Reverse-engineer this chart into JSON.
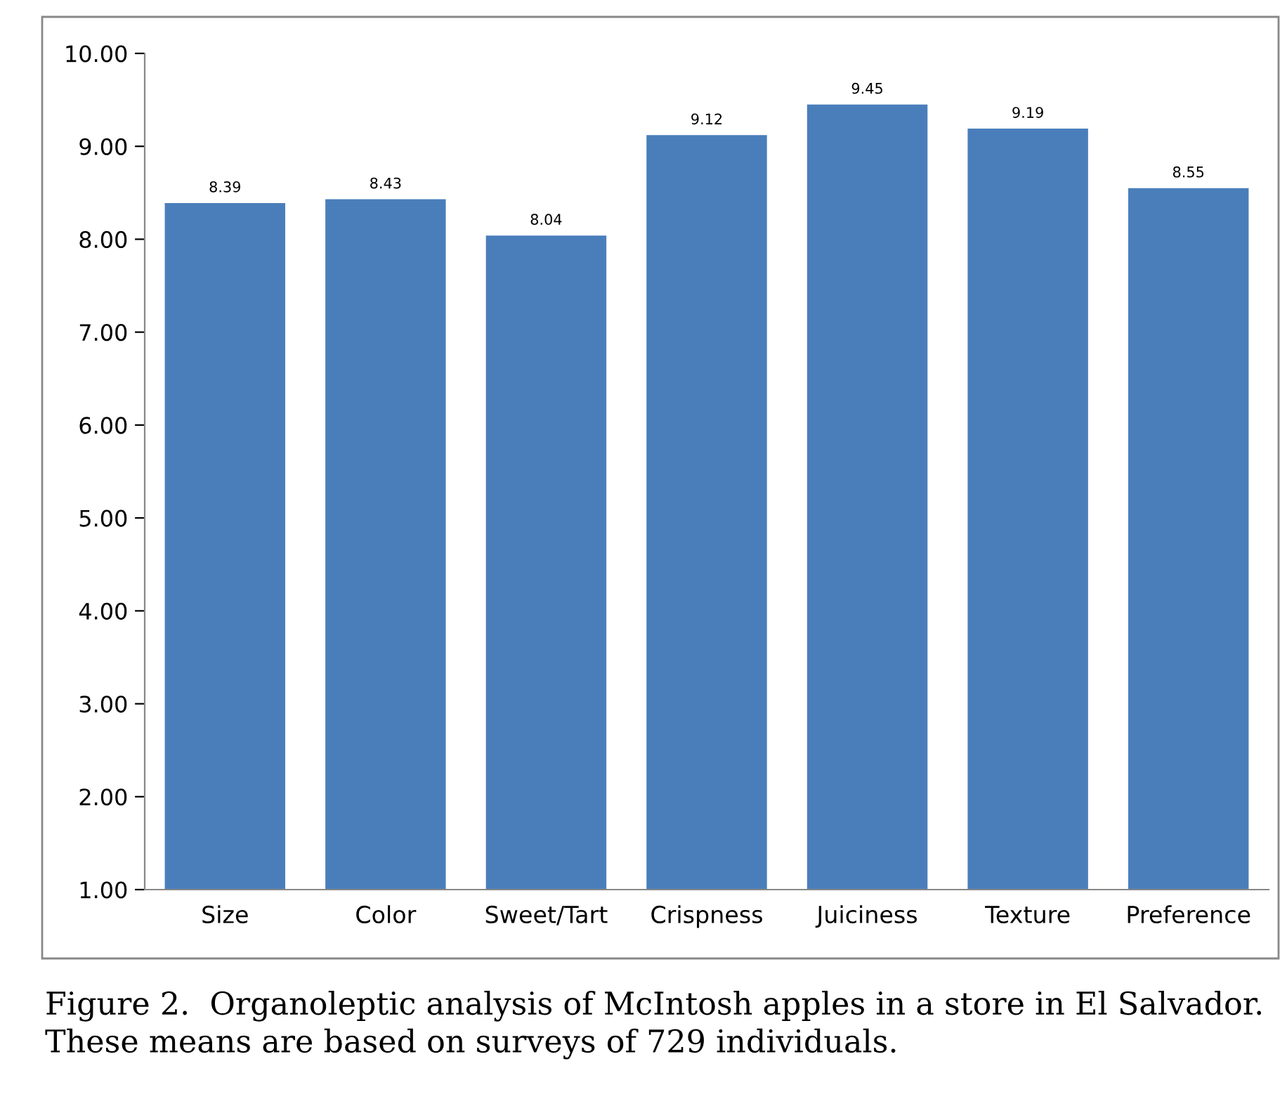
{
  "chart_data": {
    "type": "bar",
    "categories": [
      "Size",
      "Color",
      "Sweet/Tart",
      "Crispness",
      "Juiciness",
      "Texture",
      "Preference"
    ],
    "values": [
      8.39,
      8.43,
      8.04,
      9.12,
      9.45,
      9.19,
      8.55
    ],
    "color": "#4a7ebb",
    "ylim": [
      1,
      10
    ],
    "yticks": [
      {
        "value": 1,
        "label": "1.00"
      },
      {
        "value": 2,
        "label": "2.00"
      },
      {
        "value": 3,
        "label": "3.00"
      },
      {
        "value": 4,
        "label": "4.00"
      },
      {
        "value": 5,
        "label": "5.00"
      },
      {
        "value": 6,
        "label": "6.00"
      },
      {
        "value": 7,
        "label": "7.00"
      },
      {
        "value": 8,
        "label": "8.00"
      },
      {
        "value": 9,
        "label": "9.00"
      },
      {
        "value": 10,
        "label": "10.00"
      }
    ],
    "value_labels": [
      "8.39",
      "8.43",
      "8.04",
      "9.12",
      "9.45",
      "9.19",
      "8.55"
    ],
    "grid": false,
    "legend": false,
    "annotations": [
      "Figure 2.  Organoleptic analysis of McIntosh apples in a store in El Salvador.  These means are based on surveys of 729 individuals."
    ]
  }
}
